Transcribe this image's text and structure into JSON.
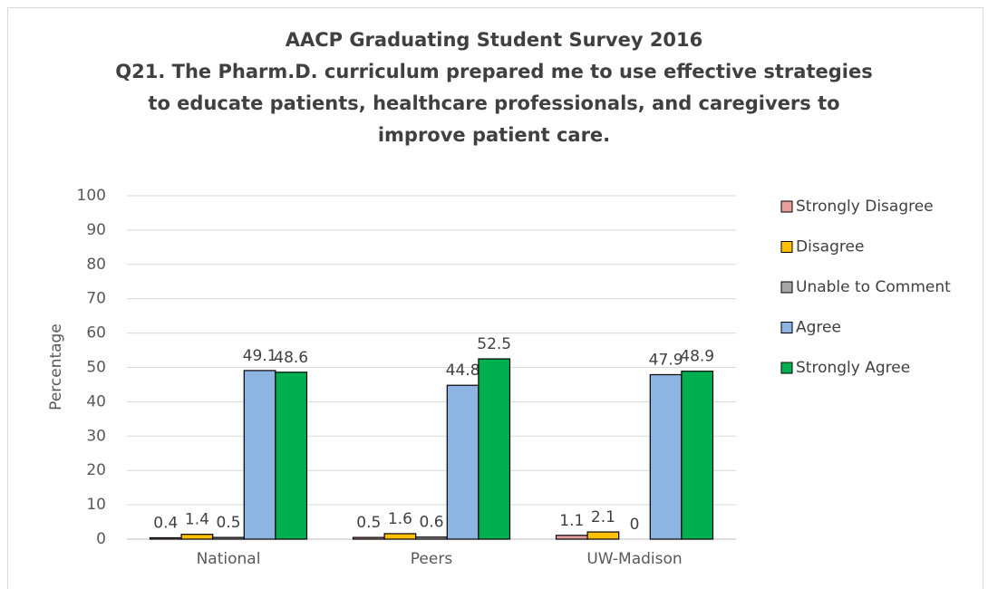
{
  "chart_data": {
    "type": "bar",
    "title": "AACP Graduating Student Survey 2016",
    "subtitle": [
      "Q21. The Pharm.D. curriculum prepared me to use effective strategies",
      "to educate patients, healthcare professionals, and caregivers to",
      "improve patient care."
    ],
    "y_label": "Percentage",
    "categories": [
      "National",
      "Peers",
      "UW-Madison"
    ],
    "series": [
      {
        "name": "Strongly Disagree",
        "color": "#e8a09e",
        "values": [
          0.4,
          0.5,
          1.1
        ]
      },
      {
        "name": "Disagree",
        "color": "#ffc000",
        "values": [
          1.4,
          1.6,
          2.1
        ]
      },
      {
        "name": "Unable to Comment",
        "color": "#a6a6a6",
        "values": [
          0.5,
          0.6,
          0
        ]
      },
      {
        "name": "Agree",
        "color": "#8db4e2",
        "values": [
          49.1,
          44.8,
          47.9
        ]
      },
      {
        "name": "Strongly Agree",
        "color": "#00b050",
        "values": [
          48.6,
          52.5,
          48.9
        ]
      }
    ],
    "ylim": [
      0,
      100
    ],
    "yticks": [
      0,
      10,
      20,
      30,
      40,
      50,
      60,
      70,
      80,
      90,
      100
    ],
    "grid": true,
    "legend": "right"
  }
}
